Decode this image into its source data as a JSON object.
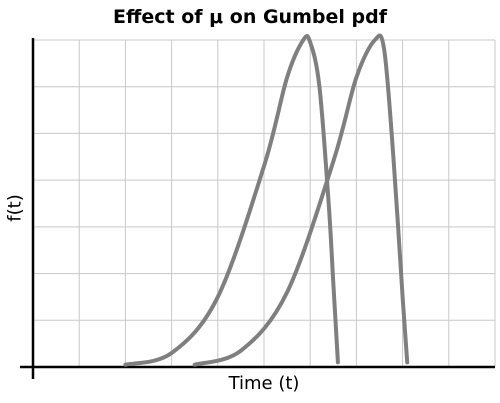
{
  "chart_data": {
    "type": "line",
    "title": "Effect of μ on Gumbel pdf",
    "xlabel": "Time (t)",
    "ylabel": "f(t)",
    "xlim": [
      0,
      10
    ],
    "ylim": [
      0,
      7
    ],
    "grid": true,
    "legend": "none",
    "line_color": "#7f7f7f",
    "series": [
      {
        "x": [
          2,
          3,
          4,
          5,
          5.5,
          5.85,
          6,
          6.2,
          6.4,
          6.5,
          6.6
        ],
        "y": [
          0.05,
          0.3,
          1.5,
          4.3,
          6.2,
          7.0,
          6.95,
          6.0,
          3.5,
          1.8,
          0.1
        ]
      },
      {
        "x": [
          3.5,
          4.5,
          5.5,
          6.5,
          7.0,
          7.4,
          7.6,
          7.8,
          8.0,
          8.1
        ],
        "y": [
          0.05,
          0.35,
          1.6,
          4.4,
          6.2,
          7.0,
          6.8,
          4.5,
          1.5,
          0.1
        ]
      }
    ]
  }
}
